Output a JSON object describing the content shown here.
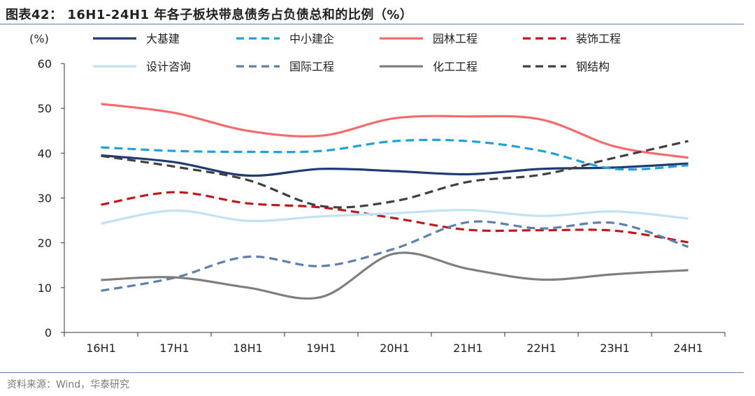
{
  "title": "图表42： 16H1-24H1 年各子板块带息债务占负债总和的比例（%）",
  "source": "资料来源：Wind，华泰研究",
  "chart_data": {
    "type": "line",
    "unit_label": "(%)",
    "categories": [
      "16H1",
      "17H1",
      "18H1",
      "19H1",
      "20H1",
      "21H1",
      "22H1",
      "23H1",
      "24H1"
    ],
    "ylim": [
      0,
      60
    ],
    "yticks": [
      0,
      10,
      20,
      30,
      40,
      50,
      60
    ],
    "grid": false,
    "legend_position": "top",
    "series": [
      {
        "name": "大基建",
        "color": "#1f3b73",
        "dash": "solid",
        "values": [
          39.5,
          38.0,
          35.0,
          36.5,
          36.0,
          35.3,
          36.5,
          36.8,
          37.7
        ]
      },
      {
        "name": "中小建企",
        "color": "#1ea2dc",
        "dash": "dashed",
        "values": [
          41.3,
          40.5,
          40.3,
          40.5,
          42.7,
          42.7,
          40.5,
          36.5,
          37.3
        ]
      },
      {
        "name": "园林工程",
        "color": "#f36b6b",
        "dash": "solid",
        "values": [
          51.0,
          49.0,
          45.0,
          43.9,
          47.8,
          48.2,
          47.5,
          41.5,
          39.0
        ]
      },
      {
        "name": "装饰工程",
        "color": "#c0171b",
        "dash": "dashed",
        "values": [
          28.5,
          31.3,
          28.8,
          27.9,
          25.5,
          22.9,
          22.8,
          22.7,
          20.1
        ]
      },
      {
        "name": "设计咨询",
        "color": "#bfe3f3",
        "dash": "solid",
        "values": [
          24.3,
          27.2,
          24.9,
          25.9,
          26.6,
          27.3,
          26.0,
          27.0,
          25.4
        ]
      },
      {
        "name": "国际工程",
        "color": "#5e80ad",
        "dash": "dashed",
        "values": [
          9.3,
          12.2,
          16.9,
          14.8,
          18.7,
          24.6,
          23.2,
          24.4,
          19.1
        ]
      },
      {
        "name": "化工工程",
        "color": "#7f7f7f",
        "dash": "solid",
        "values": [
          11.7,
          12.3,
          10.0,
          7.9,
          17.6,
          14.2,
          11.8,
          13.0,
          13.9
        ]
      },
      {
        "name": "钢结构",
        "color": "#404040",
        "dash": "dashed",
        "values": [
          39.4,
          37.0,
          34.0,
          28.2,
          29.3,
          33.6,
          35.2,
          39.0,
          42.7
        ]
      }
    ]
  }
}
